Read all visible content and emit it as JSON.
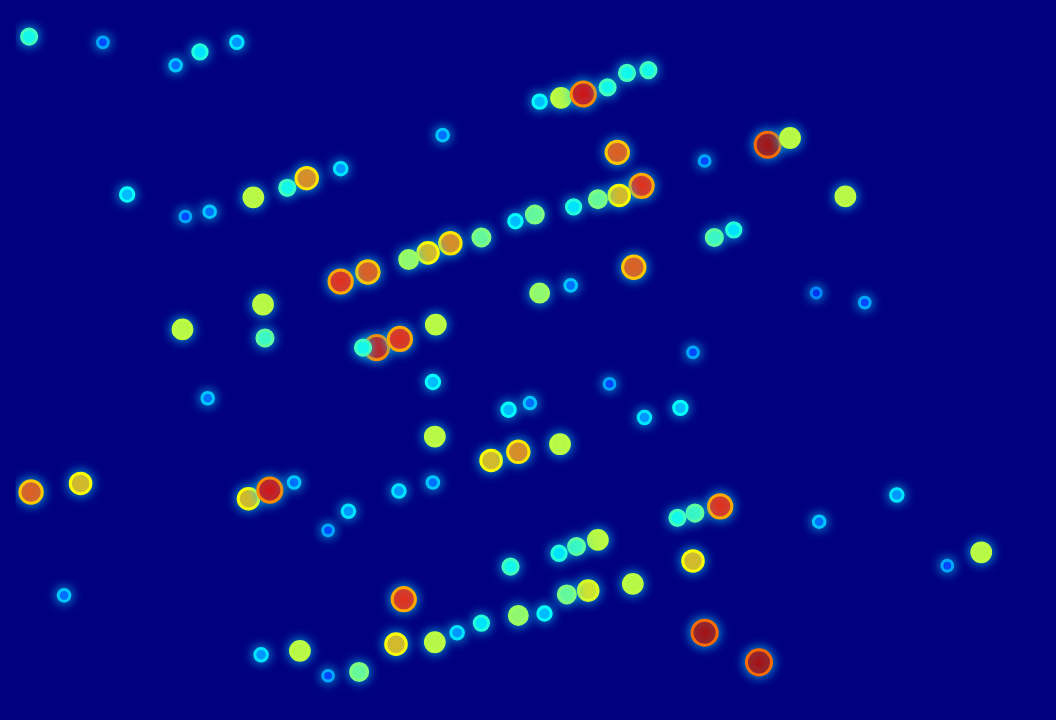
{
  "chart_data": {
    "type": "scatter",
    "x": [
      14,
      90,
      190,
      228,
      165,
      540,
      562,
      585,
      610,
      630,
      652,
      620,
      775,
      798,
      440,
      710,
      855,
      115,
      245,
      280,
      300,
      335,
      200,
      175,
      645,
      622,
      600,
      575,
      535,
      515,
      720,
      740,
      480,
      448,
      425,
      405,
      363,
      335,
      637,
      540,
      572,
      255,
      257,
      172,
      433,
      372,
      396,
      358,
      875,
      825,
      698,
      430,
      612,
      198,
      508,
      530,
      685,
      648,
      432,
      490,
      518,
      561,
      430,
      16,
      67,
      240,
      262,
      287,
      395,
      343,
      322,
      726,
      700,
      682,
      908,
      828,
      600,
      578,
      560,
      995,
      960,
      698,
      510,
      636,
      590,
      568,
      50,
      400,
      518,
      545,
      480,
      455,
      432,
      392,
      710,
      766,
      293,
      253,
      354,
      322
    ],
    "values": [
      22,
      28,
      38,
      28,
      52,
      90,
      86,
      82,
      75,
      60,
      57,
      143,
      135,
      128,
      125,
      152,
      189,
      187,
      190,
      180,
      170,
      160,
      205,
      210,
      178,
      188,
      192,
      200,
      208,
      215,
      232,
      224,
      232,
      238,
      248,
      255,
      268,
      278,
      263,
      290,
      282,
      302,
      337,
      328,
      323,
      347,
      338,
      347,
      300,
      290,
      352,
      383,
      385,
      400,
      412,
      405,
      410,
      420,
      440,
      465,
      456,
      448,
      488,
      498,
      489,
      505,
      496,
      488,
      497,
      518,
      538,
      513,
      520,
      525,
      501,
      529,
      548,
      555,
      562,
      561,
      575,
      570,
      576,
      594,
      601,
      605,
      606,
      610,
      627,
      625,
      635,
      645,
      655,
      657,
      645,
      676,
      664,
      668,
      686,
      690
    ],
    "intensity": [
      0.4,
      0.15,
      0.35,
      0.25,
      0.2,
      0.3,
      0.6,
      0.9,
      0.4,
      0.4,
      0.4,
      0.8,
      0.95,
      0.6,
      0.2,
      0.15,
      0.6,
      0.3,
      0.6,
      0.4,
      0.75,
      0.25,
      0.2,
      0.15,
      0.85,
      0.7,
      0.5,
      0.35,
      0.5,
      0.3,
      0.45,
      0.35,
      0.5,
      0.75,
      0.7,
      0.55,
      0.8,
      0.85,
      0.8,
      0.55,
      0.2,
      0.6,
      0.45,
      0.6,
      0.6,
      0.9,
      0.85,
      0.4,
      0.15,
      0.1,
      0.15,
      0.3,
      0.15,
      0.2,
      0.3,
      0.2,
      0.3,
      0.25,
      0.6,
      0.7,
      0.75,
      0.6,
      0.2,
      0.8,
      0.7,
      0.7,
      0.9,
      0.2,
      0.25,
      0.25,
      0.15,
      0.85,
      0.45,
      0.4,
      0.25,
      0.2,
      0.6,
      0.45,
      0.35,
      0.6,
      0.15,
      0.7,
      0.4,
      0.6,
      0.65,
      0.5,
      0.2,
      0.85,
      0.55,
      0.3,
      0.35,
      0.25,
      0.6,
      0.7,
      0.95,
      0.95,
      0.6,
      0.25,
      0.5,
      0.15
    ],
    "color_range": [
      0,
      1
    ],
    "xlim": [
      0,
      1056
    ],
    "ylim": [
      720,
      0
    ],
    "marker": "circle",
    "grid": false,
    "tick_labels": false
  }
}
